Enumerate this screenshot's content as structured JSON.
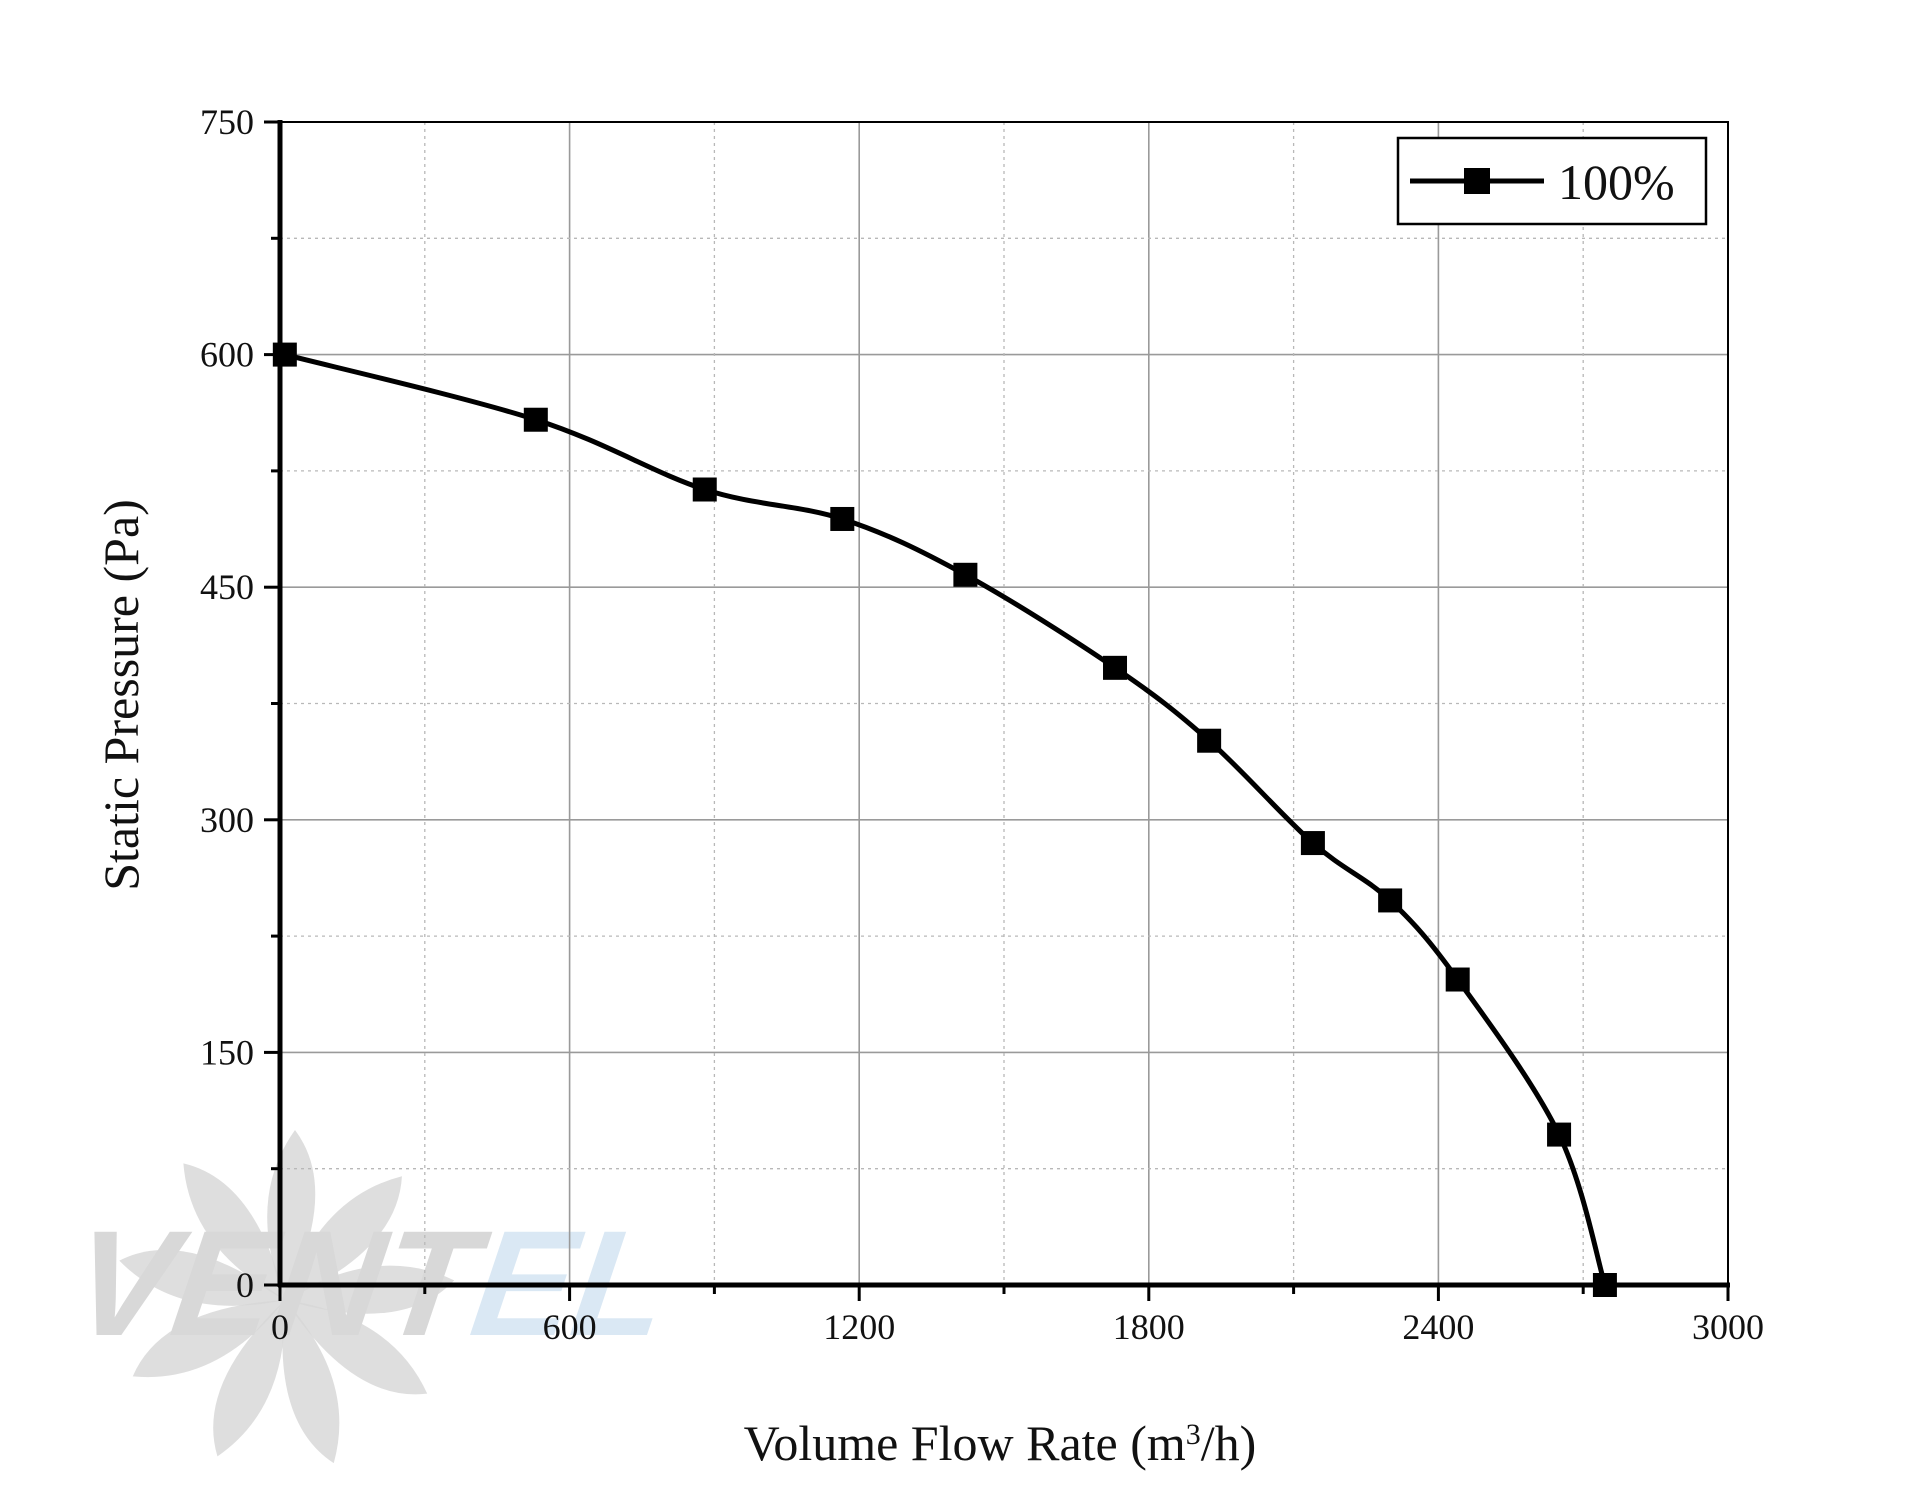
{
  "chart_data": {
    "type": "line",
    "title": "",
    "xlabel": "Volume Flow Rate (m",
    "xlabel_sup": "3",
    "xlabel_tail": "/h)",
    "ylabel": "Static Pressure (Pa)",
    "xlim": [
      0,
      3000
    ],
    "ylim": [
      0,
      750
    ],
    "xticks": [
      0,
      600,
      1200,
      1800,
      2400,
      3000
    ],
    "yticks": [
      0,
      150,
      300,
      450,
      600,
      750
    ],
    "xtick_labels": [
      "0",
      "600",
      "1200",
      "1800",
      "2400",
      "3000"
    ],
    "ytick_labels": [
      "0",
      "150",
      "300",
      "450",
      "600",
      "750"
    ],
    "minor_x_step": 300,
    "minor_y_step": 75,
    "grid": true,
    "legend_position": "top-right",
    "series": [
      {
        "name": "100%",
        "marker": "square",
        "color": "#000000",
        "x": [
          10,
          530,
          880,
          1165,
          1420,
          1730,
          1925,
          2140,
          2300,
          2440,
          2650,
          2745
        ],
        "y": [
          600,
          558,
          513,
          494,
          458,
          398,
          351,
          285,
          248,
          197,
          97,
          0
        ]
      }
    ]
  },
  "watermark": {
    "text_dark": "VENT",
    "text_light": "EL"
  },
  "colors": {
    "axis": "#000000",
    "grid": "#9a9a9a",
    "watermark_dark": "#d4d4d4",
    "watermark_light": "#d6e6f3"
  }
}
